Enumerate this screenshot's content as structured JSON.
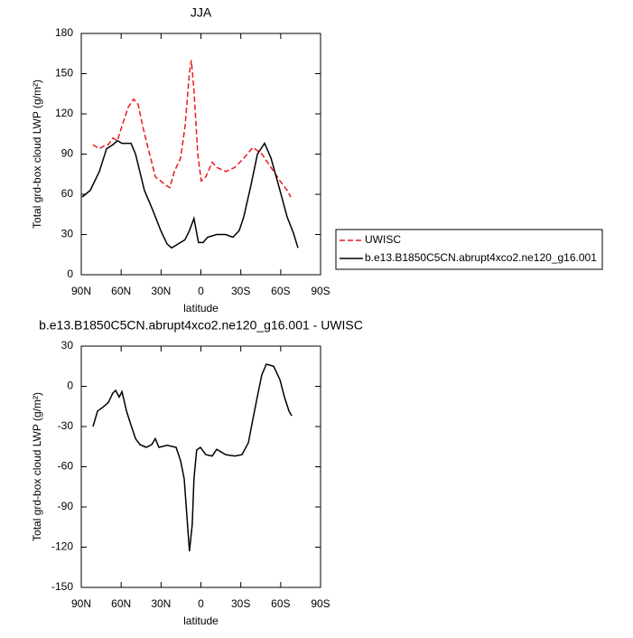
{
  "chart_data": [
    {
      "type": "line",
      "title": "JJA",
      "x_label": "latitude",
      "y_label": "Total grd-box cloud LWP (g/m²)",
      "xlim": [
        90,
        -90
      ],
      "xticks": [
        {
          "value": 90,
          "label": "90N"
        },
        {
          "value": 60,
          "label": "60N"
        },
        {
          "value": 30,
          "label": "30N"
        },
        0,
        {
          "value": -30,
          "label": "30S"
        },
        {
          "value": -60,
          "label": "60S"
        },
        {
          "value": -90,
          "label": "90S"
        }
      ],
      "ylim": [
        0,
        180
      ],
      "yticks": [
        0,
        30,
        60,
        90,
        120,
        150,
        180
      ],
      "legend": "right",
      "series": [
        {
          "name": "UWISC",
          "color": "#e8191c",
          "dashed": true,
          "x": [
            81.2,
            76.4,
            73,
            69.6,
            66.2,
            62.8,
            59.4,
            54.7,
            50.6,
            47.2,
            43.8,
            40.4,
            37,
            34.3,
            30.2,
            26.8,
            23.4,
            20,
            15.3,
            11.9,
            8.6,
            7.2,
            5.2,
            2.4,
            -0.3,
            -3.7,
            -8.5,
            -11.9,
            -18.7,
            -25.5,
            -32.3,
            -39.1,
            -45.9,
            -52.7,
            -59.5,
            -64.9,
            -67.6
          ],
          "values": [
            97,
            94,
            96,
            97,
            102,
            100,
            111,
            125,
            131,
            127,
            111,
            97,
            84,
            73,
            70,
            67,
            65,
            77,
            87,
            111,
            151,
            160,
            138,
            90,
            70,
            73,
            84,
            80,
            77,
            80,
            87,
            95,
            90,
            80,
            70,
            63,
            58
          ]
        },
        {
          "name": "b.e13.B1850C5CN.abrupt4xco2.ne120_g16.001",
          "color": "#000000",
          "dashed": false,
          "x": [
            89.3,
            83.2,
            76.4,
            71,
            66.2,
            62.8,
            59.4,
            52.6,
            49.2,
            42.5,
            35.7,
            30.2,
            25.5,
            22.1,
            18.7,
            15.4,
            12,
            8.6,
            5.2,
            1.8,
            -1.6,
            -5,
            -11.8,
            -18.6,
            -24.1,
            -28.8,
            -32.2,
            -37.7,
            -42.5,
            -47.9,
            -52.7,
            -59.4,
            -64.9,
            -69.6,
            -73
          ],
          "values": [
            58,
            63,
            77,
            94,
            97,
            100,
            98,
            98,
            90,
            63,
            47,
            33,
            23,
            20,
            22,
            24,
            26,
            33,
            42,
            24,
            24,
            28,
            30,
            30,
            28,
            33,
            43,
            67,
            90,
            98,
            87,
            63,
            43,
            31,
            20
          ]
        }
      ]
    },
    {
      "type": "line",
      "title": "b.e13.B1850C5CN.abrupt4xco2.ne120_g16.001 - UWISC",
      "x_label": "latitude",
      "y_label": "Total grd-box cloud LWP (g/m²)",
      "xlim": [
        90,
        -90
      ],
      "xticks": [
        {
          "value": 90,
          "label": "90N"
        },
        {
          "value": 60,
          "label": "60N"
        },
        {
          "value": 30,
          "label": "30N"
        },
        0,
        {
          "value": -30,
          "label": "30S"
        },
        {
          "value": -60,
          "label": "60S"
        },
        {
          "value": -90,
          "label": "90S"
        }
      ],
      "ylim": [
        -150,
        30
      ],
      "yticks": [
        -150,
        -120,
        -90,
        -60,
        -30,
        0,
        30
      ],
      "series": [
        {
          "color": "#000000",
          "dashed": false,
          "x": [
            81.2,
            77.8,
            73,
            69.6,
            66.2,
            64.2,
            61.5,
            59.4,
            56,
            52.6,
            49.2,
            45.9,
            41.1,
            37,
            34.3,
            31.6,
            25.5,
            18.7,
            15.3,
            12.6,
            10.6,
            8.6,
            6.5,
            5.2,
            3.2,
            0.4,
            -3.7,
            -8.5,
            -11.9,
            -15.3,
            -18.7,
            -25.5,
            -30.9,
            -35.7,
            -39,
            -42.4,
            -45.8,
            -49.2,
            -54.7,
            -59.4,
            -62.8,
            -66.2,
            -68.3
          ],
          "values": [
            -30,
            -18.5,
            -15,
            -12,
            -5,
            -3,
            -8,
            -4,
            -18.5,
            -29,
            -39,
            -43.5,
            -45.5,
            -43.5,
            -39,
            -45.5,
            -44,
            -45.5,
            -55.6,
            -69,
            -96,
            -123,
            -103,
            -69,
            -47.5,
            -45.5,
            -51,
            -52,
            -47,
            -49,
            -51,
            -52,
            -51,
            -42,
            -25,
            -8,
            8.4,
            16.5,
            15,
            5,
            -8,
            -18.5,
            -22
          ]
        }
      ]
    }
  ]
}
